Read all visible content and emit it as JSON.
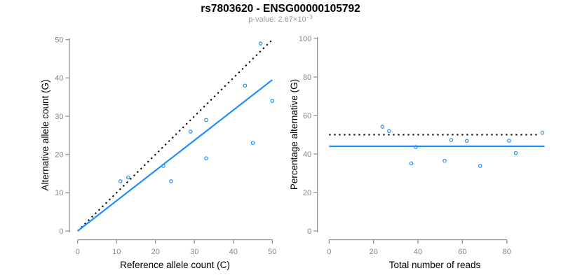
{
  "figure": {
    "title": "rs7803620 - ENSG00000105792",
    "subtitle": {
      "label": "p-value: ",
      "mantissa": "2.67×10",
      "exponent": "−3"
    }
  },
  "colors": {
    "accent_blue": "#1E90FF",
    "reference_black": "#000000",
    "axis_gray": "#8a8a8a",
    "tick_label_gray": "#878787",
    "subtitle_gray": "#9b9b9b",
    "background": "#ffffff"
  },
  "chart_data": [
    {
      "id": "allele-counts",
      "type": "scatter",
      "title": "",
      "xlabel": "Reference allele count (C)",
      "ylabel": "Alternative allele count (G)",
      "xlim": [
        0,
        50
      ],
      "ylim": [
        0,
        50
      ],
      "xticks": [
        0,
        10,
        20,
        30,
        40,
        50
      ],
      "yticks": [
        0,
        10,
        20,
        30,
        40,
        50
      ],
      "grid": false,
      "legend": null,
      "marker": "open-circle",
      "points": [
        [
          11,
          13
        ],
        [
          13,
          14
        ],
        [
          22,
          17
        ],
        [
          24,
          13
        ],
        [
          29,
          26
        ],
        [
          33,
          29
        ],
        [
          33,
          19
        ],
        [
          43,
          38
        ],
        [
          45,
          23
        ],
        [
          47,
          49
        ],
        [
          50,
          34
        ]
      ],
      "lines": [
        {
          "name": "identity-line",
          "style": "dotted",
          "color": "#000000",
          "x1": 0,
          "y1": 0,
          "x2": 50,
          "y2": 50
        },
        {
          "name": "fit-line",
          "style": "solid",
          "color": "#1E90FF",
          "x1": 0,
          "y1": 0,
          "x2": 50,
          "y2": 39.5
        }
      ]
    },
    {
      "id": "percentage-vs-reads",
      "type": "scatter",
      "title": "",
      "xlabel": "Total number of reads",
      "ylabel": "Percentage alternative (G)",
      "xlim": [
        0,
        97
      ],
      "ylim": [
        0,
        100
      ],
      "xticks": [
        0,
        20,
        40,
        60,
        80
      ],
      "yticks": [
        0,
        20,
        40,
        60,
        80,
        100
      ],
      "grid": false,
      "legend": null,
      "marker": "open-circle",
      "points": [
        [
          24,
          54.2
        ],
        [
          27,
          51.9
        ],
        [
          37,
          35.1
        ],
        [
          39,
          43.6
        ],
        [
          52,
          36.5
        ],
        [
          55,
          47.3
        ],
        [
          62,
          46.8
        ],
        [
          68,
          33.8
        ],
        [
          81,
          46.9
        ],
        [
          84,
          40.5
        ],
        [
          96,
          51.0
        ]
      ],
      "lines": [
        {
          "name": "expected-50pct-line",
          "style": "dotted",
          "color": "#000000",
          "x1": 0,
          "y1": 50,
          "x2": 93.5,
          "y2": 50
        },
        {
          "name": "observed-mean-line",
          "style": "solid",
          "color": "#1E90FF",
          "x1": 0,
          "y1": 44,
          "x2": 97,
          "y2": 44
        }
      ]
    }
  ]
}
